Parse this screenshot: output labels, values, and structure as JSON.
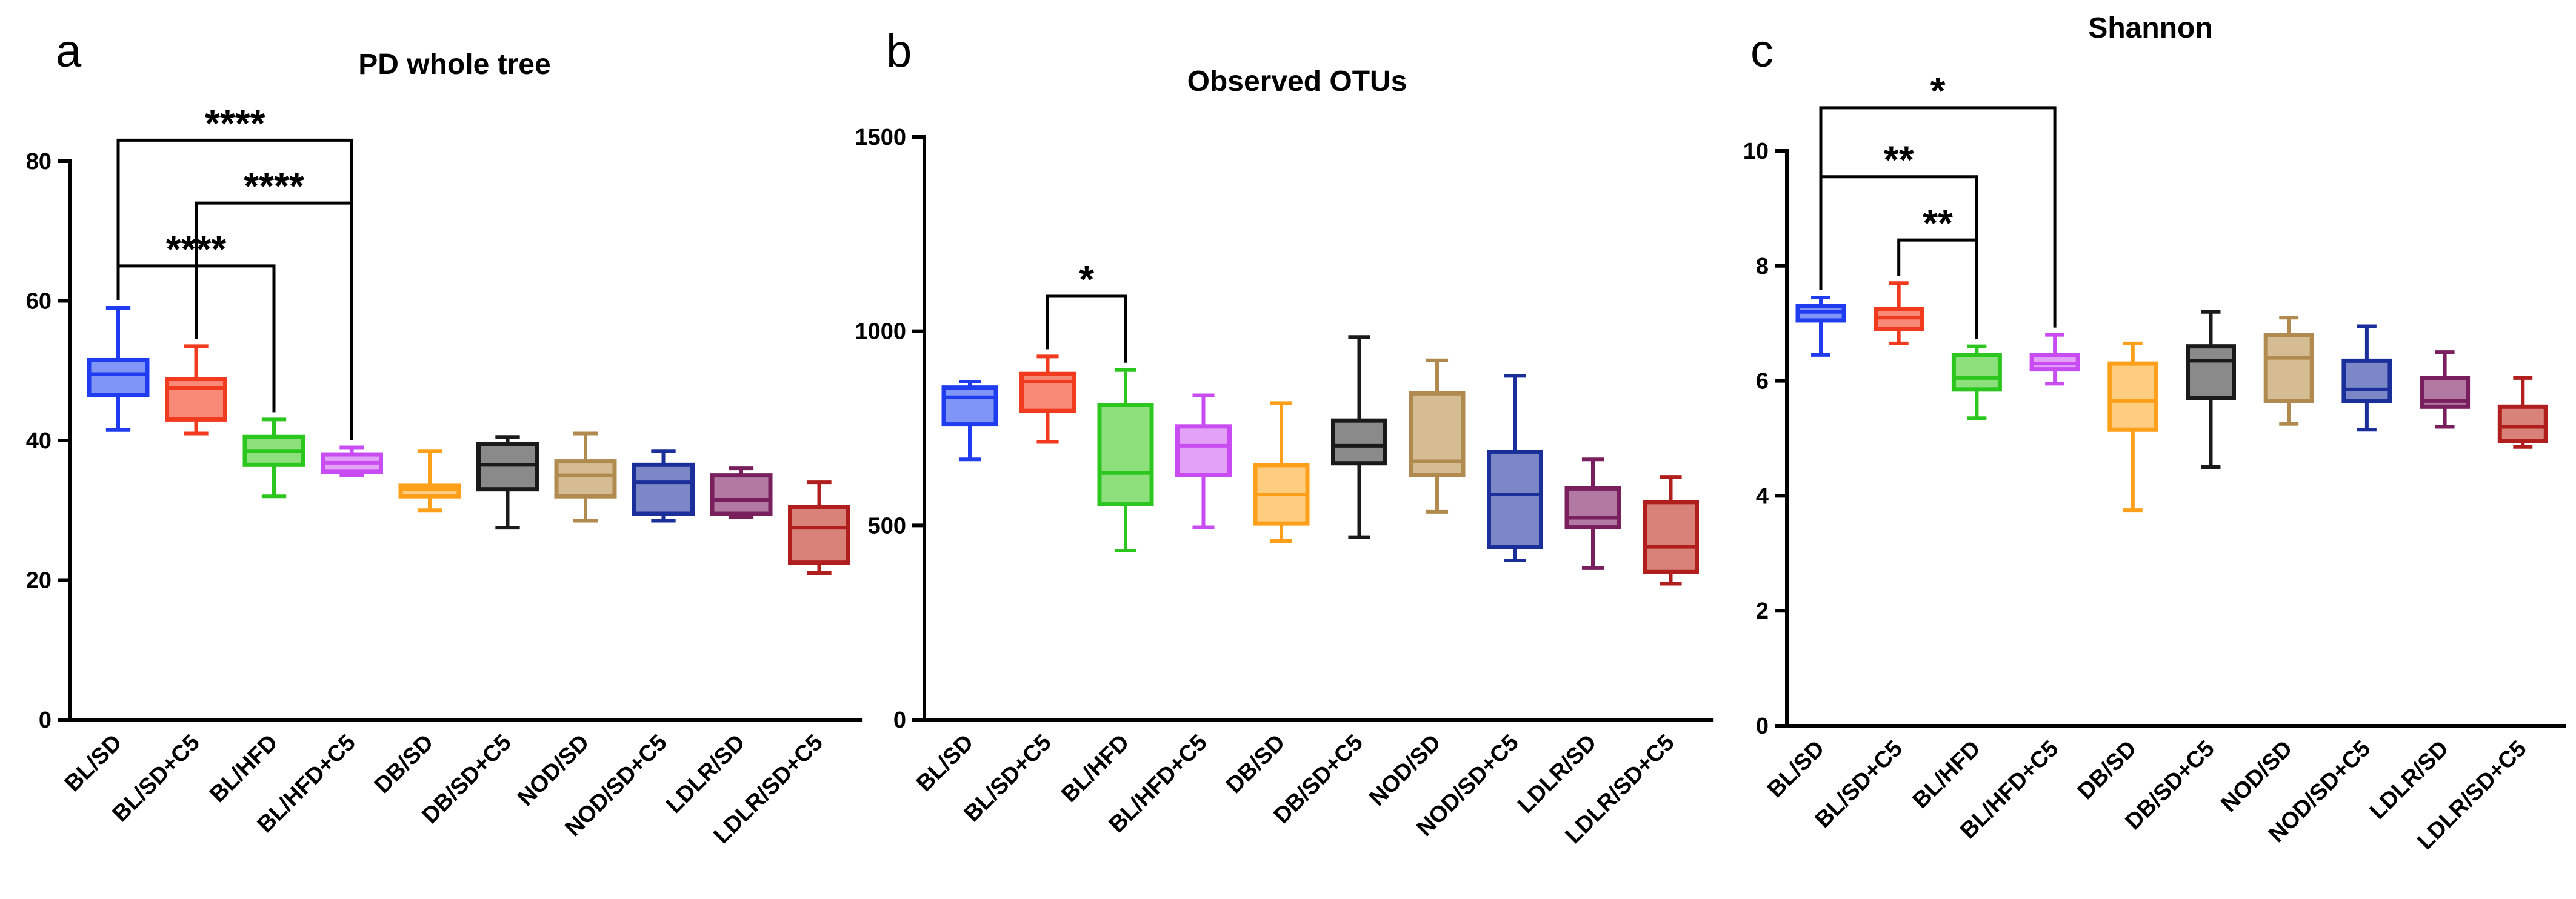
{
  "chart_data": [
    {
      "type": "box",
      "panel_letter": "a",
      "title": "PD whole tree",
      "ylim": [
        0,
        80
      ],
      "yticks": [
        0,
        20,
        40,
        60,
        80
      ],
      "grid": false,
      "categories": [
        "BL/SD",
        "BL/SD+C5",
        "BL/HFD",
        "BL/HFD+C5",
        "DB/SD",
        "DB/SD+C5",
        "NOD/SD",
        "NOD/SD+C5",
        "LDLR/SD",
        "LDLR/SD+C5"
      ],
      "boxes": [
        {
          "min": 41.5,
          "q1": 46.5,
          "median": 49.5,
          "q3": 51.5,
          "max": 59.0
        },
        {
          "min": 41.0,
          "q1": 43.0,
          "median": 47.5,
          "q3": 48.8,
          "max": 53.5
        },
        {
          "min": 32.0,
          "q1": 36.5,
          "median": 38.5,
          "q3": 40.5,
          "max": 43.0
        },
        {
          "min": 35.0,
          "q1": 35.5,
          "median": 36.8,
          "q3": 38.0,
          "max": 39.0
        },
        {
          "min": 30.0,
          "q1": 32.0,
          "median": 33.0,
          "q3": 33.5,
          "max": 38.5
        },
        {
          "min": 27.5,
          "q1": 33.0,
          "median": 36.5,
          "q3": 39.5,
          "max": 40.5
        },
        {
          "min": 28.5,
          "q1": 32.0,
          "median": 35.0,
          "q3": 37.0,
          "max": 41.0
        },
        {
          "min": 28.5,
          "q1": 29.5,
          "median": 34.0,
          "q3": 36.5,
          "max": 38.5
        },
        {
          "min": 29.0,
          "q1": 29.5,
          "median": 31.5,
          "q3": 35.0,
          "max": 36.0
        },
        {
          "min": 21.0,
          "q1": 22.5,
          "median": 27.5,
          "q3": 30.5,
          "max": 34.0
        }
      ],
      "significance": [
        {
          "from": 0,
          "to": 3,
          "label": "****",
          "at": 83
        },
        {
          "from": 1,
          "to": 3,
          "label": "****",
          "at": 74
        },
        {
          "from": 0,
          "to": 2,
          "label": "****",
          "at": 65
        }
      ]
    },
    {
      "type": "box",
      "panel_letter": "b",
      "title": "Observed OTUs",
      "ylim": [
        0,
        1500
      ],
      "yticks": [
        0,
        500,
        1000,
        1500
      ],
      "grid": false,
      "categories": [
        "BL/SD",
        "BL/SD+C5",
        "BL/HFD",
        "BL/HFD+C5",
        "DB/SD",
        "DB/SD+C5",
        "NOD/SD",
        "NOD/SD+C5",
        "LDLR/SD",
        "LDLR/SD+C5"
      ],
      "boxes": [
        {
          "min": 670,
          "q1": 760,
          "median": 830,
          "q3": 855,
          "max": 870
        },
        {
          "min": 715,
          "q1": 795,
          "median": 870,
          "q3": 890,
          "max": 935
        },
        {
          "min": 435,
          "q1": 555,
          "median": 635,
          "q3": 810,
          "max": 900
        },
        {
          "min": 495,
          "q1": 630,
          "median": 705,
          "q3": 755,
          "max": 835
        },
        {
          "min": 460,
          "q1": 505,
          "median": 580,
          "q3": 655,
          "max": 815
        },
        {
          "min": 470,
          "q1": 660,
          "median": 705,
          "q3": 770,
          "max": 985
        },
        {
          "min": 535,
          "q1": 630,
          "median": 665,
          "q3": 840,
          "max": 925
        },
        {
          "min": 410,
          "q1": 445,
          "median": 580,
          "q3": 690,
          "max": 885
        },
        {
          "min": 390,
          "q1": 495,
          "median": 520,
          "q3": 595,
          "max": 670
        },
        {
          "min": 350,
          "q1": 380,
          "median": 445,
          "q3": 560,
          "max": 625
        }
      ],
      "significance": [
        {
          "from": 1,
          "to": 2,
          "label": "*",
          "at": 1090
        }
      ]
    },
    {
      "type": "box",
      "panel_letter": "c",
      "title": "Shannon",
      "ylim": [
        0,
        10
      ],
      "yticks": [
        0,
        2,
        4,
        6,
        8,
        10
      ],
      "grid": false,
      "categories": [
        "BL/SD",
        "BL/SD+C5",
        "BL/HFD",
        "BL/HFD+C5",
        "DB/SD",
        "DB/SD+C5",
        "NOD/SD",
        "NOD/SD+C5",
        "LDLR/SD",
        "LDLR/SD+C5"
      ],
      "boxes": [
        {
          "min": 6.45,
          "q1": 7.05,
          "median": 7.2,
          "q3": 7.3,
          "max": 7.45
        },
        {
          "min": 6.65,
          "q1": 6.9,
          "median": 7.1,
          "q3": 7.25,
          "max": 7.7
        },
        {
          "min": 5.35,
          "q1": 5.85,
          "median": 6.05,
          "q3": 6.45,
          "max": 6.6
        },
        {
          "min": 5.95,
          "q1": 6.2,
          "median": 6.3,
          "q3": 6.45,
          "max": 6.8
        },
        {
          "min": 3.75,
          "q1": 5.15,
          "median": 5.65,
          "q3": 6.3,
          "max": 6.65
        },
        {
          "min": 4.5,
          "q1": 5.7,
          "median": 6.35,
          "q3": 6.6,
          "max": 7.2
        },
        {
          "min": 5.25,
          "q1": 5.65,
          "median": 6.4,
          "q3": 6.8,
          "max": 7.1
        },
        {
          "min": 5.15,
          "q1": 5.65,
          "median": 5.85,
          "q3": 6.35,
          "max": 6.95
        },
        {
          "min": 5.2,
          "q1": 5.55,
          "median": 5.65,
          "q3": 6.05,
          "max": 6.5
        },
        {
          "min": 4.85,
          "q1": 4.95,
          "median": 5.2,
          "q3": 5.55,
          "max": 6.05
        }
      ],
      "significance": [
        {
          "from": 0,
          "to": 3,
          "label": "*",
          "at": 10.75
        },
        {
          "from": 0,
          "to": 2,
          "label": "**",
          "at": 9.55
        },
        {
          "from": 1,
          "to": 2,
          "label": "**",
          "at": 8.45
        }
      ]
    }
  ],
  "colors": {
    "strokes": [
      "#1f3cf0",
      "#f23a1e",
      "#2cc71e",
      "#c84cf2",
      "#ff9f1a",
      "#1a1a1a",
      "#b08a4e",
      "#1a2f99",
      "#7a1f5e",
      "#b01e1e"
    ],
    "fills": [
      "#7f96f7",
      "#f98a78",
      "#8ee07c",
      "#e3a1f8",
      "#ffcd80",
      "#8a8a8a",
      "#d6bc92",
      "#7b87c6",
      "#b27aa2",
      "#d98279"
    ]
  }
}
